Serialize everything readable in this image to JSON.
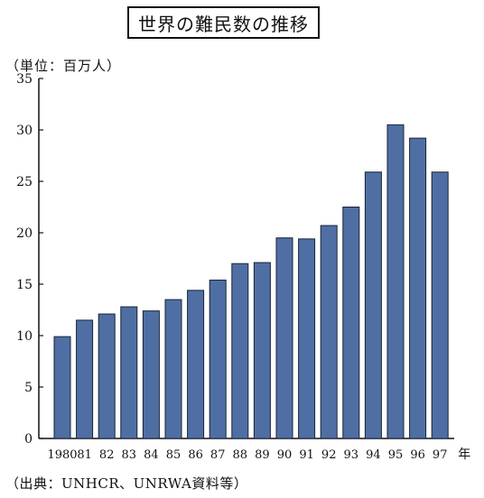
{
  "title": "世界の難民数の推移",
  "unit_label": "（単位：百万人）",
  "source_label": "（出典：UNHCR、UNRWA資料等）",
  "colors": {
    "bar": "#4f6fa4",
    "bar_stroke": "#1a2238",
    "axis": "#111111"
  },
  "chart_data": {
    "type": "bar",
    "title": "世界の難民数の推移",
    "xlabel": "年",
    "ylabel": "（単位：百万人）",
    "ylim": [
      0,
      35
    ],
    "yticks": [
      0,
      5,
      10,
      15,
      20,
      25,
      30,
      35
    ],
    "grid": false,
    "categories": [
      "1980",
      "81",
      "82",
      "83",
      "84",
      "85",
      "86",
      "87",
      "88",
      "89",
      "90",
      "91",
      "92",
      "93",
      "94",
      "95",
      "96",
      "97"
    ],
    "values": [
      9.9,
      11.5,
      12.1,
      12.8,
      12.4,
      13.5,
      14.4,
      15.4,
      17.0,
      17.1,
      19.5,
      19.4,
      20.7,
      22.5,
      25.9,
      30.5,
      29.2,
      25.9
    ],
    "x_unit": "年"
  }
}
